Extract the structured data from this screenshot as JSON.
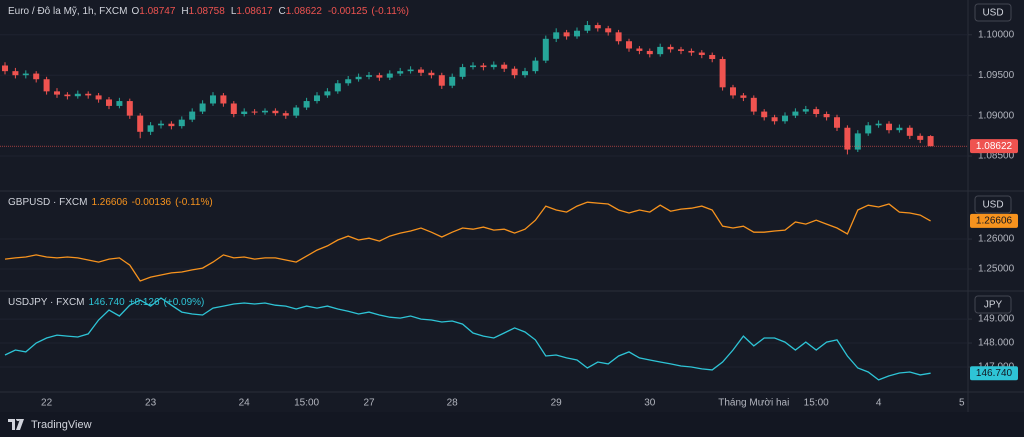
{
  "chart_data": [
    {
      "type": "candlestick",
      "legend": {
        "symbol": "Euro / Đô la Mỹ, 1h, FXCM",
        "o_label": "O",
        "open": 1.08747,
        "h_label": "H",
        "high": 1.08758,
        "l_label": "L",
        "low": 1.08617,
        "c_label": "C",
        "close": 1.08622,
        "change": -0.00125,
        "change_pct": {
          "value": -0.11,
          "label": "(-0.11%)"
        }
      },
      "currency": "USD",
      "up_color": "#26a69a",
      "down_color": "#ef5350",
      "legend_color": "#ef5350",
      "ylim": [
        1.0808,
        1.1043
      ],
      "yticks": [
        {
          "value": 1.1,
          "label": "1.10000"
        },
        {
          "value": 1.095,
          "label": "1.09500"
        },
        {
          "value": 1.09,
          "label": "1.09000"
        },
        {
          "value": 1.085,
          "label": "1.08500"
        }
      ],
      "grid": true,
      "open": [
        1.0962,
        1.0955,
        1.095,
        1.0952,
        1.0945,
        1.093,
        1.0926,
        1.0924,
        1.0927,
        1.0925,
        1.092,
        1.0912,
        1.0918,
        1.09,
        1.088,
        1.0888,
        1.089,
        1.0887,
        1.0895,
        1.0905,
        1.0915,
        1.0925,
        1.0915,
        1.0902,
        1.0905,
        1.0904,
        1.0906,
        1.0903,
        1.09,
        1.091,
        1.0918,
        1.0925,
        1.093,
        1.094,
        1.0945,
        1.0948,
        1.095,
        1.0947,
        1.0952,
        1.0955,
        1.0957,
        1.0953,
        1.095,
        1.0937,
        1.0948,
        1.096,
        1.0962,
        1.096,
        1.0963,
        1.0958,
        1.095,
        1.0955,
        1.0968,
        1.0995,
        1.1003,
        1.0998,
        1.1005,
        1.1012,
        1.1008,
        1.1003,
        1.0992,
        1.0983,
        1.098,
        1.0976,
        1.0985,
        1.0982,
        1.098,
        1.0978,
        1.0975,
        1.097,
        1.0935,
        1.0925,
        1.0922,
        1.0905,
        1.0898,
        1.0893,
        1.09,
        1.0905,
        1.0908,
        1.0902,
        1.0898,
        1.0885,
        1.0858,
        1.0878,
        1.0888,
        1.089,
        1.0882,
        1.0885,
        1.0875,
        1.08747,
        null,
        null,
        null
      ],
      "high": [
        1.0966,
        1.0959,
        1.0956,
        1.0955,
        1.0948,
        1.0934,
        1.0929,
        1.0931,
        1.093,
        1.0928,
        1.0923,
        1.0922,
        1.0921,
        1.0903,
        1.0892,
        1.0894,
        1.0893,
        1.0899,
        1.0909,
        1.0919,
        1.0929,
        1.0928,
        1.0918,
        1.0909,
        1.0908,
        1.0909,
        1.0909,
        1.0906,
        1.0913,
        1.0922,
        1.0929,
        1.0934,
        1.0944,
        1.0949,
        1.0952,
        1.0954,
        1.0953,
        1.0956,
        1.0959,
        1.0961,
        1.096,
        1.0956,
        1.0953,
        1.0952,
        1.0964,
        1.0966,
        1.0965,
        1.0967,
        1.0966,
        1.0961,
        1.0959,
        1.0972,
        1.0999,
        1.1008,
        1.1006,
        1.1009,
        1.1017,
        1.1015,
        1.1011,
        1.1006,
        1.0995,
        1.0986,
        1.0983,
        1.0989,
        1.0988,
        1.0985,
        1.0983,
        1.0981,
        1.0978,
        1.0973,
        1.0938,
        1.0928,
        1.0925,
        1.0908,
        1.0901,
        1.0904,
        1.0909,
        1.0912,
        1.0911,
        1.0905,
        1.0901,
        1.0888,
        1.0882,
        1.0892,
        1.0894,
        1.0893,
        1.0889,
        1.0888,
        1.0878,
        1.08758,
        null,
        null,
        null
      ],
      "low": [
        1.0951,
        1.0946,
        1.0946,
        1.0941,
        1.0926,
        1.0922,
        1.092,
        1.0921,
        1.0921,
        1.0916,
        1.0908,
        1.0909,
        1.0896,
        1.0872,
        1.0876,
        1.0884,
        1.0883,
        1.0884,
        1.0892,
        1.0902,
        1.0912,
        1.0911,
        1.0898,
        1.0899,
        1.0901,
        1.0901,
        1.09,
        1.0896,
        1.0897,
        1.0907,
        1.0915,
        1.0922,
        1.0927,
        1.0937,
        1.0942,
        1.0945,
        1.0943,
        1.0944,
        1.0949,
        1.0952,
        1.0949,
        1.0946,
        1.0933,
        1.0934,
        1.0945,
        1.0957,
        1.0956,
        1.0957,
        1.0954,
        1.0946,
        1.0947,
        1.0952,
        1.0965,
        1.0991,
        1.0994,
        1.0995,
        1.1002,
        1.1004,
        1.0999,
        1.0988,
        1.0979,
        1.0976,
        1.0972,
        1.0973,
        1.0978,
        1.0976,
        1.0974,
        1.0971,
        1.0966,
        1.0931,
        1.0921,
        1.0918,
        1.0901,
        1.0894,
        1.0889,
        1.089,
        1.0897,
        1.0902,
        1.0898,
        1.0894,
        1.0881,
        1.0852,
        1.0855,
        1.0875,
        1.0885,
        1.0878,
        1.0879,
        1.0871,
        1.0866,
        1.08617,
        null,
        null,
        null
      ],
      "close": [
        1.0955,
        1.095,
        1.0952,
        1.0945,
        1.093,
        1.0926,
        1.0924,
        1.0927,
        1.0925,
        1.092,
        1.0912,
        1.0918,
        1.09,
        1.088,
        1.0888,
        1.089,
        1.0887,
        1.0895,
        1.0905,
        1.0915,
        1.0925,
        1.0915,
        1.0902,
        1.0905,
        1.0904,
        1.0906,
        1.0903,
        1.09,
        1.091,
        1.0918,
        1.0925,
        1.093,
        1.094,
        1.0945,
        1.0948,
        1.095,
        1.0947,
        1.0952,
        1.0955,
        1.0957,
        1.0953,
        1.095,
        1.0937,
        1.0948,
        1.096,
        1.0962,
        1.096,
        1.0963,
        1.0958,
        1.095,
        1.0955,
        1.0968,
        1.0995,
        1.1003,
        1.0998,
        1.1005,
        1.1012,
        1.1008,
        1.1003,
        1.0992,
        1.0983,
        1.098,
        1.0976,
        1.0985,
        1.0982,
        1.098,
        1.0978,
        1.0975,
        1.097,
        1.0935,
        1.0925,
        1.0922,
        1.0905,
        1.0898,
        1.0893,
        1.09,
        1.0905,
        1.0908,
        1.0902,
        1.0898,
        1.0885,
        1.0858,
        1.0878,
        1.0888,
        1.089,
        1.0882,
        1.0885,
        1.0875,
        1.087,
        1.08622,
        null,
        null,
        null
      ]
    },
    {
      "type": "line",
      "legend": {
        "symbol": "GBPUSD · FXCM",
        "last": 1.26606,
        "change": -0.00136,
        "change_pct": {
          "value": -0.11,
          "label": "(-0.11%)"
        }
      },
      "currency": "USD",
      "color": "#f7931e",
      "ylim": [
        1.243,
        1.2757
      ],
      "yticks": [
        {
          "value": 1.26,
          "label": "1.26000"
        },
        {
          "value": 1.25,
          "label": "1.25000"
        }
      ],
      "grid": true,
      "values": [
        1.2533,
        1.2537,
        1.254,
        1.2547,
        1.254,
        1.2537,
        1.254,
        1.2537,
        1.253,
        1.2523,
        1.2533,
        1.2537,
        1.2513,
        1.246,
        1.2473,
        1.248,
        1.2487,
        1.249,
        1.2497,
        1.2503,
        1.2523,
        1.2547,
        1.2537,
        1.254,
        1.2533,
        1.2537,
        1.2537,
        1.253,
        1.2523,
        1.2543,
        1.2563,
        1.2577,
        1.2597,
        1.261,
        1.2597,
        1.2603,
        1.2593,
        1.261,
        1.262,
        1.2627,
        1.2637,
        1.2623,
        1.2607,
        1.2623,
        1.2637,
        1.2633,
        1.264,
        1.263,
        1.2633,
        1.262,
        1.2633,
        1.2663,
        1.271,
        1.2697,
        1.269,
        1.271,
        1.2723,
        1.272,
        1.2717,
        1.2697,
        1.2687,
        1.2697,
        1.269,
        1.2713,
        1.2693,
        1.27,
        1.2703,
        1.271,
        1.2697,
        1.2643,
        1.2637,
        1.2643,
        1.2623,
        1.2623,
        1.2627,
        1.263,
        1.2657,
        1.265,
        1.2663,
        1.265,
        1.2637,
        1.2617,
        1.2697,
        1.2713,
        1.2707,
        1.2717,
        1.269,
        1.2687,
        1.268,
        1.26606,
        null,
        null,
        null
      ]
    },
    {
      "type": "line",
      "legend": {
        "symbol": "USDJPY · FXCM",
        "last": {
          "value": 146.74,
          "label": "146.740"
        },
        "change": {
          "value": 0.126,
          "label": "+0.126"
        },
        "change_pct": {
          "value": 0.09,
          "label": "(+0.09%)"
        }
      },
      "currency": "JPY",
      "color": "#2ec4d6",
      "ylim": [
        146.04,
        150.13
      ],
      "yticks": [
        {
          "value": 149,
          "label": "149.000"
        },
        {
          "value": 148,
          "label": "148.000"
        },
        {
          "value": 147,
          "label": "147.000"
        }
      ],
      "grid": true,
      "categories": [
        null,
        null,
        null,
        null,
        "22",
        null,
        null,
        null,
        null,
        null,
        null,
        null,
        null,
        null,
        "23",
        null,
        null,
        null,
        null,
        null,
        null,
        null,
        null,
        "24",
        null,
        null,
        null,
        null,
        null,
        "15:00",
        null,
        null,
        null,
        null,
        null,
        "27",
        null,
        null,
        null,
        null,
        null,
        null,
        null,
        "28",
        null,
        null,
        null,
        null,
        null,
        null,
        null,
        null,
        null,
        "29",
        null,
        null,
        null,
        null,
        null,
        null,
        null,
        null,
        "30",
        null,
        null,
        null,
        null,
        null,
        null,
        null,
        null,
        null,
        "Tháng Mười hai",
        null,
        null,
        null,
        null,
        null,
        "15:00",
        null,
        null,
        null,
        null,
        null,
        "4",
        null,
        null,
        null,
        null,
        null,
        null,
        null,
        "5"
      ],
      "values": [
        147.5,
        147.71,
        147.63,
        148.0,
        148.21,
        148.33,
        148.29,
        148.25,
        148.38,
        148.96,
        149.38,
        149.13,
        149.58,
        149.79,
        149.54,
        149.88,
        149.58,
        149.29,
        149.21,
        149.17,
        149.46,
        149.54,
        149.63,
        149.67,
        149.63,
        149.67,
        149.58,
        149.54,
        149.42,
        149.54,
        149.46,
        149.54,
        149.42,
        149.33,
        149.21,
        149.29,
        149.17,
        149.08,
        149.04,
        149.13,
        149.0,
        148.96,
        148.88,
        148.92,
        148.79,
        148.42,
        148.29,
        148.21,
        148.42,
        148.63,
        148.46,
        148.13,
        147.46,
        147.5,
        147.38,
        147.29,
        146.96,
        147.21,
        147.13,
        147.46,
        147.63,
        147.38,
        147.29,
        147.21,
        147.13,
        147.04,
        147.0,
        146.92,
        146.88,
        147.21,
        147.71,
        148.29,
        147.88,
        148.21,
        148.21,
        148.04,
        147.71,
        148.04,
        147.71,
        148.04,
        148.13,
        147.46,
        146.96,
        146.79,
        146.46,
        146.63,
        146.75,
        146.79,
        146.67,
        146.74,
        null,
        null,
        null
      ]
    }
  ],
  "footer": {
    "brand": "TradingView"
  }
}
